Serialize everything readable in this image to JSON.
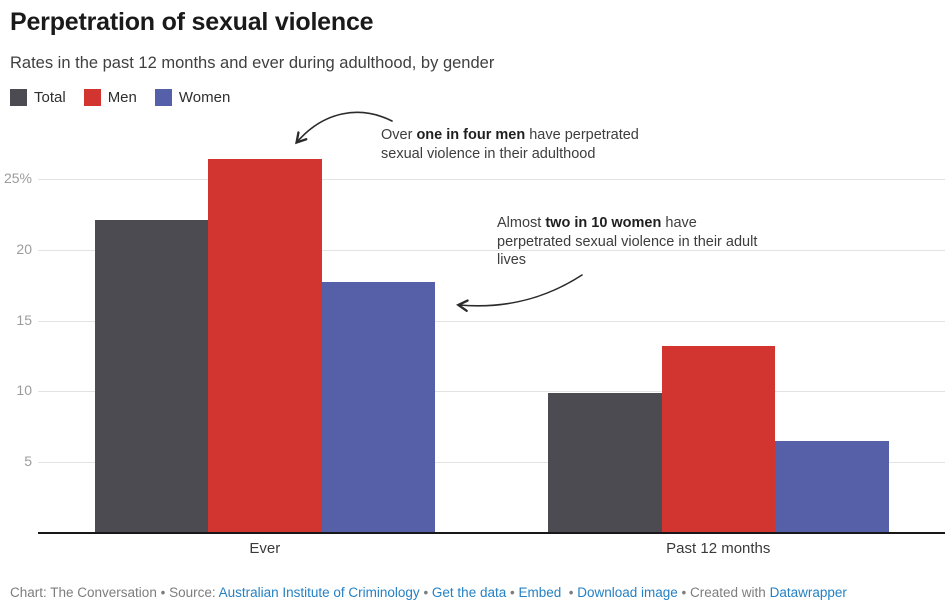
{
  "header": {
    "title": "Perpetration of sexual violence",
    "subtitle": "Rates in the past 12 months and ever during adulthood, by gender"
  },
  "legend": {
    "items": [
      {
        "label": "Total",
        "color": "#4b4b51"
      },
      {
        "label": "Men",
        "color": "#d2342f"
      },
      {
        "label": "Women",
        "color": "#5560a8"
      }
    ]
  },
  "chart_data": {
    "type": "bar",
    "title": "Perpetration of sexual violence",
    "subtitle": "Rates in the past 12 months and ever during adulthood, by gender",
    "unit": "%",
    "categories": [
      "Ever",
      "Past 12 months"
    ],
    "series": [
      {
        "name": "Total",
        "color": "#4b4b51",
        "values": [
          22.1,
          9.9
        ]
      },
      {
        "name": "Men",
        "color": "#d2342f",
        "values": [
          26.4,
          13.2
        ]
      },
      {
        "name": "Women",
        "color": "#5560a8",
        "values": [
          17.7,
          6.5
        ]
      }
    ],
    "xlabel": "",
    "ylabel": "",
    "ylim": [
      0,
      27.5
    ],
    "yticks": [
      5,
      10,
      15,
      20,
      25
    ],
    "ytick_labels": [
      "5",
      "10",
      "15",
      "20",
      "25%"
    ],
    "grid": true,
    "legend_position": "top-left"
  },
  "annotations": [
    {
      "pre": "Over ",
      "bold": "one in four men",
      "post": " have perpetrated sexual violence in their adulthood"
    },
    {
      "pre": "Almost ",
      "bold": "two in 10 women",
      "post": " have perpetrated sexual violence in their adult lives"
    }
  ],
  "footer": {
    "segments": [
      {
        "text": "Chart: The Conversation",
        "type": "text"
      },
      {
        "text": " • ",
        "type": "sep"
      },
      {
        "text": "Source: ",
        "type": "text"
      },
      {
        "text": "Australian Institute of Criminology",
        "type": "link",
        "name": "source-link"
      },
      {
        "text": " • ",
        "type": "sep"
      },
      {
        "text": "Get the data",
        "type": "link",
        "name": "get-the-data-link"
      },
      {
        "text": " • ",
        "type": "sep"
      },
      {
        "text": "Embed",
        "type": "link",
        "name": "embed-link"
      },
      {
        "text": "  • ",
        "type": "sep"
      },
      {
        "text": "Download image",
        "type": "link",
        "name": "download-image-link"
      },
      {
        "text": " • ",
        "type": "sep"
      },
      {
        "text": "Created with ",
        "type": "text"
      },
      {
        "text": "Datawrapper",
        "type": "link",
        "name": "datawrapper-link"
      }
    ],
    "link_color": "#2481c4"
  },
  "colors": {
    "grid": "#e3e3e3",
    "axis": "#18181a",
    "tick_label": "#9c9c9c",
    "arrow": "#2b2b2b"
  }
}
